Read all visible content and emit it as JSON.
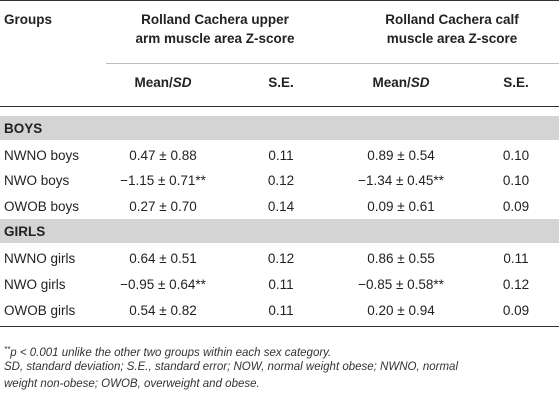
{
  "header": {
    "groups": "Groups",
    "col_group_1": [
      "Rolland Cachera upper",
      "arm muscle area Z-score"
    ],
    "col_group_2": [
      "Rolland Cachera calf",
      "muscle area Z-score"
    ],
    "mean_sd_1": "Mean/",
    "mean_sd_1_it": "SD",
    "se_1": "S.E.",
    "mean_sd_2": "Mean/",
    "mean_sd_2_it": "SD",
    "se_2": "S.E."
  },
  "sections": {
    "boys": {
      "title": "BOYS",
      "rows": [
        {
          "group": "NWNO boys",
          "ua_mean": "0.47 ± 0.88",
          "ua_se": "0.11",
          "calf_mean": "0.89 ± 0.54",
          "calf_se": "0.10"
        },
        {
          "group": "NWO boys",
          "ua_mean": "−1.15 ± 0.71**",
          "ua_se": "0.12",
          "calf_mean": "−1.34 ± 0.45**",
          "calf_se": "0.10"
        },
        {
          "group": "OWOB boys",
          "ua_mean": "0.27 ± 0.70",
          "ua_se": "0.14",
          "calf_mean": "0.09 ± 0.61",
          "calf_se": "0.09"
        }
      ]
    },
    "girls": {
      "title": "GIRLS",
      "rows": [
        {
          "group": "NWNO girls",
          "ua_mean": "0.64 ± 0.51",
          "ua_se": "0.12",
          "calf_mean": "0.86 ± 0.55",
          "calf_se": "0.11"
        },
        {
          "group": "NWO girls",
          "ua_mean": "−0.95 ± 0.64**",
          "ua_se": "0.11",
          "calf_mean": "−0.85 ± 0.58**",
          "calf_se": "0.12"
        },
        {
          "group": "OWOB girls",
          "ua_mean": "0.54 ± 0.82",
          "ua_se": "0.11",
          "calf_mean": "0.20 ± 0.94",
          "calf_se": "0.09"
        }
      ]
    }
  },
  "footnotes": {
    "stars": "**",
    "line1": "p < 0.001 unlike the other two groups within each sex category.",
    "line2": "SD, standard deviation; S.E., standard error; NOW, normal weight obese; NWNO, normal",
    "line3": "weight non-obese; OWOB, overweight and obese."
  }
}
